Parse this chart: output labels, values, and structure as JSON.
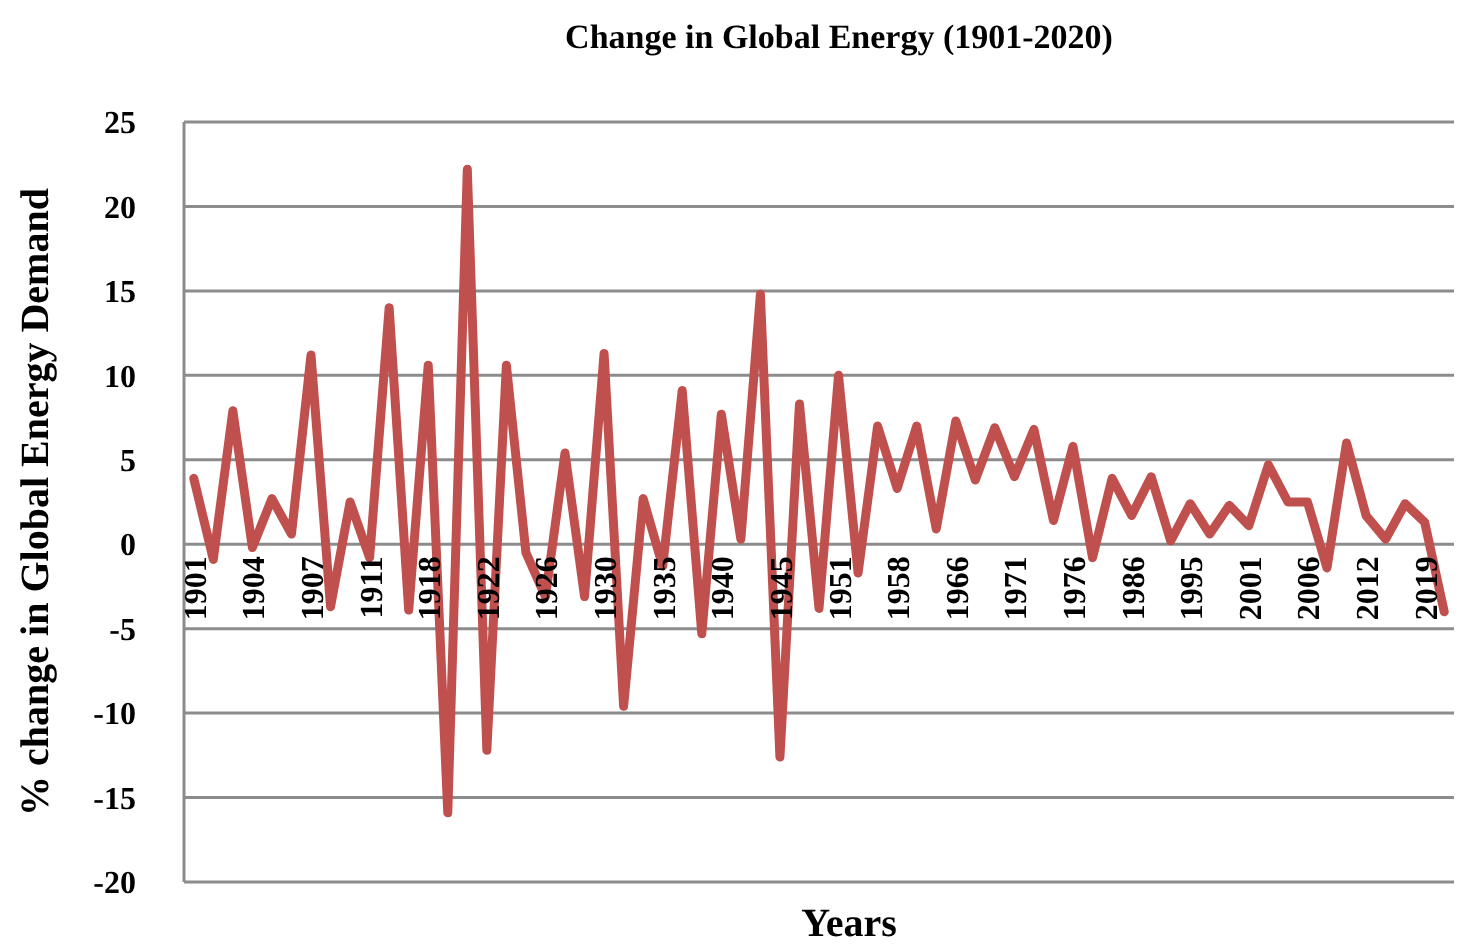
{
  "chart_data": {
    "type": "line",
    "title": "Change in Global Energy (1901-2020)",
    "xlabel": "Years",
    "ylabel": "% change in Global Energy Demand",
    "categories": [
      "1901",
      null,
      null,
      "1904",
      null,
      null,
      "1907",
      null,
      null,
      "1911",
      null,
      null,
      "1918",
      null,
      null,
      "1922",
      null,
      null,
      "1926",
      null,
      null,
      "1930",
      null,
      null,
      "1935",
      null,
      null,
      "1940",
      null,
      null,
      "1945",
      null,
      null,
      "1951",
      null,
      null,
      "1958",
      null,
      null,
      "1966",
      null,
      null,
      "1971",
      null,
      null,
      "1976",
      null,
      null,
      "1986",
      null,
      null,
      "1995",
      null,
      null,
      "2001",
      null,
      null,
      "2006",
      null,
      null,
      "2012",
      null,
      null,
      "2019",
      null
    ],
    "series": [
      {
        "color": "#c0504d",
        "values": [
          3.9,
          -0.9,
          7.9,
          -0.2,
          2.7,
          0.6,
          11.2,
          -3.7,
          2.5,
          -0.8,
          14.0,
          -3.9,
          10.6,
          -15.9,
          22.2,
          -12.2,
          10.6,
          -0.5,
          -3.1,
          5.4,
          -3.1,
          11.3,
          -9.6,
          2.7,
          -1.3,
          9.1,
          -5.3,
          7.7,
          0.3,
          14.8,
          -12.6,
          8.3,
          -3.8,
          10.0,
          -1.7,
          7.0,
          3.3,
          7.0,
          0.9,
          7.3,
          3.8,
          6.9,
          4.0,
          6.8,
          1.4,
          5.8,
          -0.8,
          3.9,
          1.7,
          4.0,
          0.2,
          2.4,
          0.6,
          2.3,
          1.1,
          4.7,
          2.5,
          2.5,
          -1.4,
          6.0,
          1.7,
          0.3,
          2.4,
          1.3,
          -4.0
        ]
      }
    ],
    "ylim": [
      -20,
      25
    ],
    "yticks": [
      -20,
      -15,
      -10,
      -5,
      0,
      5,
      10,
      15,
      20,
      25
    ],
    "grid": "y",
    "marker": "none",
    "line_style": "solid"
  }
}
